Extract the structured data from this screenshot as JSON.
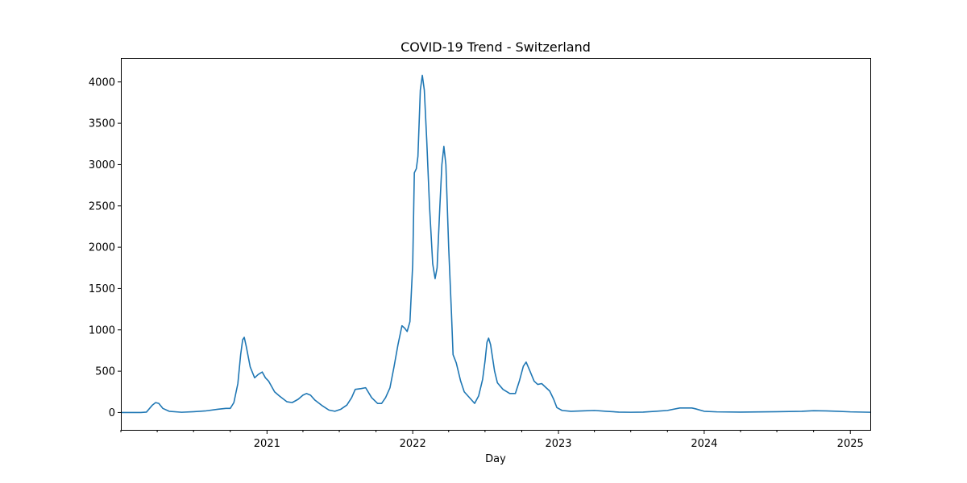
{
  "chart_data": {
    "type": "line",
    "title": "COVID-19 Trend - Switzerland",
    "xlabel": "Day",
    "ylabel": "",
    "x_axis_type": "date",
    "xlim": [
      "2020-01-01",
      "2025-02-20"
    ],
    "ylim": [
      -210,
      4290
    ],
    "y_ticks": [
      0,
      500,
      1000,
      1500,
      2000,
      2500,
      3000,
      3500,
      4000
    ],
    "x_ticks": [
      {
        "date": "2021-01-01",
        "label": "2021"
      },
      {
        "date": "2022-01-01",
        "label": "2022"
      },
      {
        "date": "2023-01-01",
        "label": "2023"
      },
      {
        "date": "2024-01-01",
        "label": "2024"
      },
      {
        "date": "2025-01-01",
        "label": "2025"
      }
    ],
    "minor_x_ticks": [
      "2020-01-01",
      "2020-04-01",
      "2020-07-01",
      "2020-10-01",
      "2021-04-01",
      "2021-07-01",
      "2021-10-01",
      "2022-04-01",
      "2022-07-01",
      "2022-10-01",
      "2023-04-01",
      "2023-07-01",
      "2023-10-01",
      "2024-04-01",
      "2024-07-01",
      "2024-10-01"
    ],
    "grid": false,
    "series": [
      {
        "color": "#1f77b4",
        "points": [
          [
            "2020-01-01",
            0
          ],
          [
            "2020-02-20",
            0
          ],
          [
            "2020-03-05",
            5
          ],
          [
            "2020-03-20",
            90
          ],
          [
            "2020-03-28",
            120
          ],
          [
            "2020-04-05",
            110
          ],
          [
            "2020-04-15",
            50
          ],
          [
            "2020-05-01",
            15
          ],
          [
            "2020-06-01",
            3
          ],
          [
            "2020-07-01",
            10
          ],
          [
            "2020-08-01",
            20
          ],
          [
            "2020-09-01",
            40
          ],
          [
            "2020-09-20",
            50
          ],
          [
            "2020-10-01",
            50
          ],
          [
            "2020-10-10",
            120
          ],
          [
            "2020-10-20",
            350
          ],
          [
            "2020-10-27",
            700
          ],
          [
            "2020-11-01",
            880
          ],
          [
            "2020-11-05",
            910
          ],
          [
            "2020-11-10",
            800
          ],
          [
            "2020-11-20",
            550
          ],
          [
            "2020-12-01",
            420
          ],
          [
            "2020-12-10",
            460
          ],
          [
            "2020-12-20",
            490
          ],
          [
            "2020-12-28",
            420
          ],
          [
            "2021-01-05",
            380
          ],
          [
            "2021-01-12",
            320
          ],
          [
            "2021-01-20",
            250
          ],
          [
            "2021-02-01",
            200
          ],
          [
            "2021-02-20",
            130
          ],
          [
            "2021-03-05",
            120
          ],
          [
            "2021-03-20",
            160
          ],
          [
            "2021-04-01",
            210
          ],
          [
            "2021-04-10",
            230
          ],
          [
            "2021-04-20",
            210
          ],
          [
            "2021-05-01",
            150
          ],
          [
            "2021-05-20",
            80
          ],
          [
            "2021-06-05",
            30
          ],
          [
            "2021-06-20",
            15
          ],
          [
            "2021-07-05",
            40
          ],
          [
            "2021-07-20",
            90
          ],
          [
            "2021-08-01",
            180
          ],
          [
            "2021-08-10",
            280
          ],
          [
            "2021-08-25",
            290
          ],
          [
            "2021-09-05",
            300
          ],
          [
            "2021-09-20",
            180
          ],
          [
            "2021-10-05",
            110
          ],
          [
            "2021-10-15",
            110
          ],
          [
            "2021-10-25",
            180
          ],
          [
            "2021-11-05",
            300
          ],
          [
            "2021-11-15",
            550
          ],
          [
            "2021-11-25",
            820
          ],
          [
            "2021-12-05",
            1050
          ],
          [
            "2021-12-12",
            1020
          ],
          [
            "2021-12-18",
            980
          ],
          [
            "2021-12-25",
            1100
          ],
          [
            "2022-01-01",
            1800
          ],
          [
            "2022-01-05",
            2900
          ],
          [
            "2022-01-10",
            2950
          ],
          [
            "2022-01-14",
            3100
          ],
          [
            "2022-01-20",
            3900
          ],
          [
            "2022-01-25",
            4080
          ],
          [
            "2022-01-30",
            3900
          ],
          [
            "2022-02-05",
            3300
          ],
          [
            "2022-02-12",
            2500
          ],
          [
            "2022-02-20",
            1800
          ],
          [
            "2022-02-26",
            1620
          ],
          [
            "2022-03-03",
            1750
          ],
          [
            "2022-03-10",
            2500
          ],
          [
            "2022-03-15",
            3000
          ],
          [
            "2022-03-20",
            3220
          ],
          [
            "2022-03-25",
            3000
          ],
          [
            "2022-04-01",
            2000
          ],
          [
            "2022-04-08",
            1200
          ],
          [
            "2022-04-12",
            700
          ],
          [
            "2022-04-20",
            600
          ],
          [
            "2022-05-01",
            380
          ],
          [
            "2022-05-10",
            250
          ],
          [
            "2022-05-25",
            170
          ],
          [
            "2022-06-05",
            110
          ],
          [
            "2022-06-15",
            200
          ],
          [
            "2022-06-25",
            400
          ],
          [
            "2022-07-01",
            620
          ],
          [
            "2022-07-06",
            850
          ],
          [
            "2022-07-10",
            900
          ],
          [
            "2022-07-15",
            820
          ],
          [
            "2022-07-25",
            500
          ],
          [
            "2022-08-01",
            360
          ],
          [
            "2022-08-15",
            280
          ],
          [
            "2022-09-01",
            230
          ],
          [
            "2022-09-15",
            230
          ],
          [
            "2022-09-25",
            380
          ],
          [
            "2022-10-05",
            560
          ],
          [
            "2022-10-12",
            610
          ],
          [
            "2022-10-20",
            520
          ],
          [
            "2022-11-01",
            380
          ],
          [
            "2022-11-10",
            340
          ],
          [
            "2022-11-20",
            350
          ],
          [
            "2022-12-01",
            300
          ],
          [
            "2022-12-10",
            260
          ],
          [
            "2022-12-20",
            160
          ],
          [
            "2022-12-28",
            60
          ],
          [
            "2023-01-10",
            25
          ],
          [
            "2023-02-01",
            15
          ],
          [
            "2023-03-01",
            20
          ],
          [
            "2023-04-01",
            25
          ],
          [
            "2023-05-01",
            15
          ],
          [
            "2023-06-01",
            5
          ],
          [
            "2023-07-01",
            3
          ],
          [
            "2023-08-01",
            5
          ],
          [
            "2023-09-01",
            15
          ],
          [
            "2023-10-01",
            25
          ],
          [
            "2023-11-01",
            55
          ],
          [
            "2023-12-01",
            55
          ],
          [
            "2023-12-10",
            45
          ],
          [
            "2024-01-01",
            15
          ],
          [
            "2024-02-01",
            8
          ],
          [
            "2024-04-01",
            5
          ],
          [
            "2024-07-01",
            10
          ],
          [
            "2024-09-01",
            15
          ],
          [
            "2024-10-01",
            22
          ],
          [
            "2024-11-01",
            20
          ],
          [
            "2024-12-01",
            15
          ],
          [
            "2025-01-01",
            8
          ],
          [
            "2025-02-20",
            3
          ]
        ]
      }
    ]
  }
}
